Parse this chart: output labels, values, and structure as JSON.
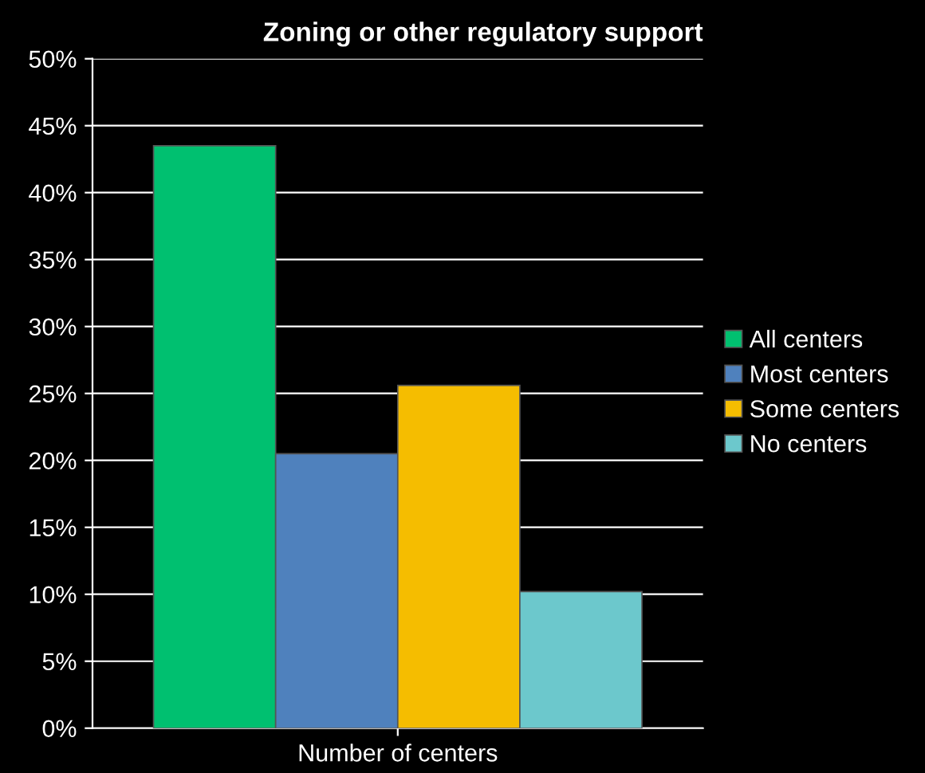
{
  "chart_data": {
    "type": "bar",
    "title": "Zoning or other regulatory support",
    "categories": [
      "Number of centers"
    ],
    "series": [
      {
        "name": "All centers",
        "color": "#00c070",
        "values": [
          43.5
        ]
      },
      {
        "name": "Most centers",
        "color": "#4f81bd",
        "values": [
          20.5
        ]
      },
      {
        "name": "Some centers",
        "color": "#f5bd00",
        "values": [
          25.6
        ]
      },
      {
        "name": "No centers",
        "color": "#6cc8cc",
        "values": [
          10.2
        ]
      }
    ],
    "ylim": [
      0,
      50
    ],
    "yticks": [
      {
        "value": 0,
        "label": "0%"
      },
      {
        "value": 5,
        "label": "5%"
      },
      {
        "value": 10,
        "label": "10%"
      },
      {
        "value": 15,
        "label": "15%"
      },
      {
        "value": 20,
        "label": "20%"
      },
      {
        "value": 25,
        "label": "25%"
      },
      {
        "value": 30,
        "label": "30%"
      },
      {
        "value": 35,
        "label": "35%"
      },
      {
        "value": 40,
        "label": "40%"
      },
      {
        "value": 45,
        "label": "45%"
      },
      {
        "value": 50,
        "label": "50%"
      }
    ],
    "grid": "y",
    "legend": "right"
  }
}
